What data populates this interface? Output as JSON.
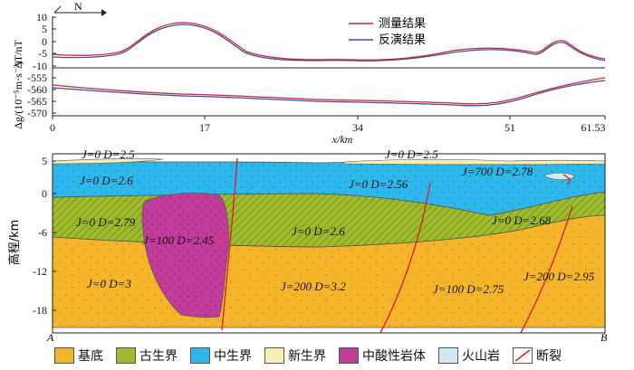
{
  "magnetic_panel": {
    "ylabel": "ΔT/nT",
    "yticks": [
      "10",
      "5",
      "0",
      "-5",
      "-10"
    ],
    "north_label": "N",
    "legend": [
      {
        "label": "测量结果",
        "color": "#d9222a"
      },
      {
        "label": "反演结果",
        "color": "#3b4fa0"
      }
    ]
  },
  "gravity_panel": {
    "ylabel": "Δg/(10⁻⁵m·s⁻²)",
    "yticks": [
      "-555",
      "-560",
      "-565",
      "-570"
    ]
  },
  "x_axis": {
    "ticks": [
      "0",
      "17",
      "34",
      "51",
      "61.53"
    ],
    "label": "x/km"
  },
  "section": {
    "ylabel": "高程/km",
    "yticks": [
      "5",
      "0",
      "-6",
      "-12",
      "-18"
    ],
    "end_labels": {
      "left": "A",
      "right": "B"
    },
    "unit_labels": [
      {
        "J": "0",
        "D": "2.5"
      },
      {
        "J": "0",
        "D": "2.5"
      },
      {
        "J": "700",
        "D": "2.78"
      },
      {
        "J": "0",
        "D": "2.6"
      },
      {
        "J": "0",
        "D": "2.56"
      },
      {
        "J": "0",
        "D": "2.79"
      },
      {
        "J": "100",
        "D": "2.45"
      },
      {
        "J": "0",
        "D": "2.6"
      },
      {
        "J": "0",
        "D": "2.68"
      },
      {
        "J": "0",
        "D": "3"
      },
      {
        "J": "200",
        "D": "3.2"
      },
      {
        "J": "100",
        "D": "2.75"
      },
      {
        "J": "200",
        "D": "2.95"
      }
    ]
  },
  "legend": [
    {
      "label": "基底",
      "color": "#f5b52a"
    },
    {
      "label": "古生界",
      "color": "#9dbb2c"
    },
    {
      "label": "中生界",
      "color": "#2db7ea"
    },
    {
      "label": "新生界",
      "color": "#f7f0b5"
    },
    {
      "label": "中酸性岩体",
      "color": "#c23c9a"
    },
    {
      "label": "火山岩",
      "color": "#cfe8f2"
    },
    {
      "label": "断裂",
      "color": "#d9222a",
      "kind": "fault"
    }
  ],
  "colors": {
    "measured": "#d9222a",
    "inverted": "#3b4fa0",
    "basement": "#f5b52a",
    "paleozoic": "#9dbb2c",
    "mesozoic": "#2db7ea",
    "cenozoic": "#f7f0b5",
    "intrusion": "#c23c9a",
    "volcanic": "#cfe8f2",
    "fault": "#d9222a"
  }
}
